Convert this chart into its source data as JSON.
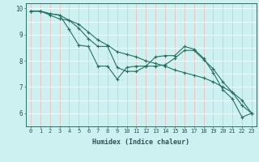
{
  "title": "",
  "xlabel": "Humidex (Indice chaleur)",
  "bg_color": "#cdf0f0",
  "line_color": "#267060",
  "grid_h_color": "#ffffff",
  "grid_v_color": "#f0c0c0",
  "xlim": [
    -0.5,
    23.5
  ],
  "ylim": [
    5.5,
    10.2
  ],
  "yticks": [
    6,
    7,
    8,
    9,
    10
  ],
  "xticks": [
    0,
    1,
    2,
    3,
    4,
    5,
    6,
    7,
    8,
    9,
    10,
    11,
    12,
    13,
    14,
    15,
    16,
    17,
    18,
    19,
    20,
    21,
    22,
    23
  ],
  "line1_y": [
    9.9,
    9.9,
    9.8,
    9.75,
    9.2,
    8.6,
    8.55,
    7.8,
    7.8,
    7.3,
    7.75,
    7.8,
    7.8,
    8.15,
    8.2,
    8.2,
    8.55,
    8.45,
    8.1,
    7.55,
    6.9,
    6.55,
    5.85,
    6.0
  ],
  "line2_y": [
    9.9,
    9.9,
    9.8,
    9.75,
    9.55,
    9.25,
    8.85,
    8.55,
    8.55,
    7.75,
    7.6,
    7.6,
    7.8,
    7.8,
    7.85,
    8.1,
    8.4,
    8.4,
    8.05,
    7.7,
    7.2,
    6.8,
    6.3,
    6.0
  ],
  "line3_y": [
    9.9,
    9.9,
    9.75,
    9.6,
    9.55,
    9.4,
    9.1,
    8.8,
    8.6,
    8.35,
    8.25,
    8.15,
    8.0,
    7.9,
    7.8,
    7.65,
    7.55,
    7.45,
    7.35,
    7.2,
    7.0,
    6.8,
    6.5,
    6.0
  ],
  "tick_fontsize": 5.0,
  "xlabel_fontsize": 6.0,
  "marker": "+",
  "markersize": 3.0,
  "linewidth": 0.8
}
